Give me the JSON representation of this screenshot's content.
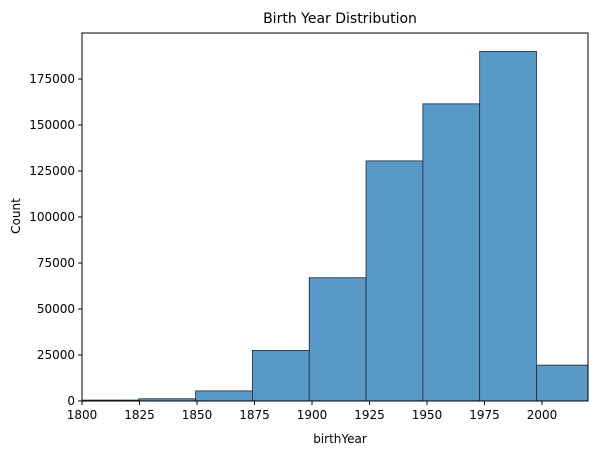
{
  "chart_data": {
    "type": "bar",
    "subtype": "histogram",
    "title": "Birth Year Distribution",
    "xlabel": "birthYear",
    "ylabel": "Count",
    "xlim": [
      1800,
      2020
    ],
    "ylim": [
      0,
      200000
    ],
    "bin_edges": [
      1800,
      1824.7,
      1849.4,
      1874.1,
      1898.8,
      1923.5,
      1948.2,
      1972.9,
      1997.6,
      2022.3
    ],
    "values": [
      500,
      1200,
      5500,
      27500,
      67000,
      130500,
      161500,
      190000,
      19500
    ],
    "xticks": [
      1800,
      1825,
      1850,
      1875,
      1900,
      1925,
      1950,
      1975,
      2000
    ],
    "yticks": [
      0,
      25000,
      50000,
      75000,
      100000,
      125000,
      150000,
      175000
    ],
    "grid": false,
    "colors": {
      "bar_fill": "#5899c7",
      "bar_edge": "#1f2b36",
      "axis": "#000000"
    }
  }
}
